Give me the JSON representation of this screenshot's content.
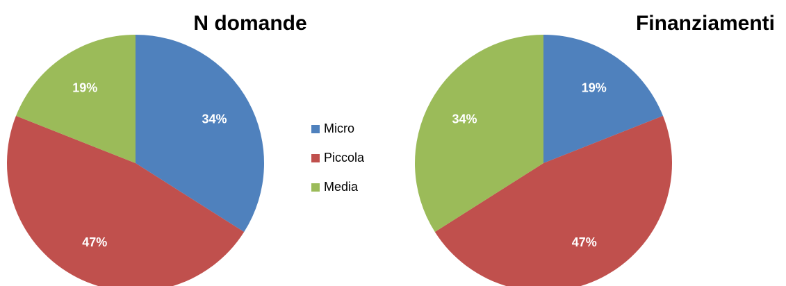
{
  "chart_data": [
    {
      "type": "pie",
      "title": "N domande",
      "categories": [
        "Micro",
        "Piccola",
        "Media"
      ],
      "values": [
        34,
        47,
        19
      ],
      "value_labels": [
        "34%",
        "47%",
        "19%"
      ],
      "colors": [
        "#4f81bd",
        "#c0504d",
        "#9bbb59"
      ],
      "legend": "center"
    },
    {
      "type": "pie",
      "title": "Finanziamenti",
      "categories": [
        "Micro",
        "Piccola",
        "Media"
      ],
      "values": [
        19,
        47,
        34
      ],
      "value_labels": [
        "19%",
        "47%",
        "34%"
      ],
      "colors": [
        "#4f81bd",
        "#c0504d",
        "#9bbb59"
      ]
    }
  ]
}
